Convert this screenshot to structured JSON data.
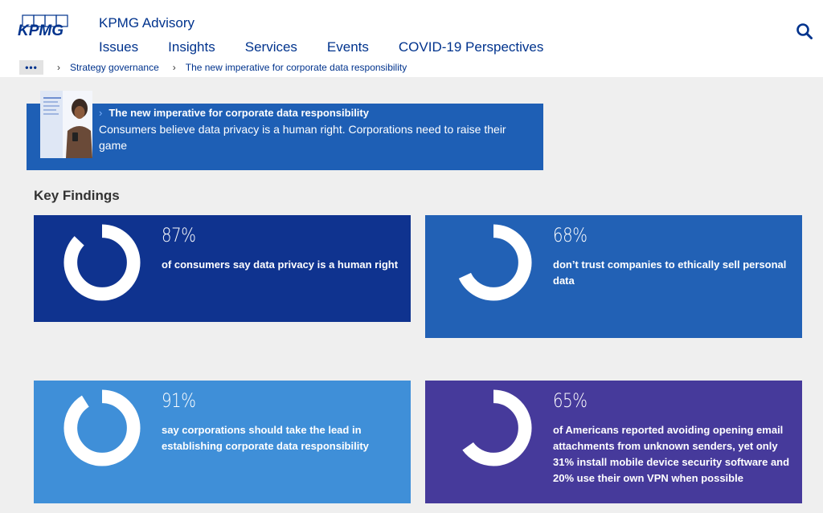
{
  "header": {
    "logo_text": "KPMG",
    "site_title": "KPMG Advisory",
    "nav": [
      "Issues",
      "Insights",
      "Services",
      "Events",
      "COVID-19 Perspectives"
    ],
    "search_icon": "search-icon"
  },
  "breadcrumb": {
    "more": "•••",
    "items": [
      "Strategy governance",
      "The new imperative for corporate data responsibility"
    ]
  },
  "banner": {
    "heading": "The new imperative for corporate data responsibility",
    "description": "Consumers believe data privacy is a human right. Corporations need to raise their game"
  },
  "key_findings": {
    "title": "Key Findings",
    "cards": [
      {
        "percent": "87%",
        "value": 87,
        "text": "of consumers say data privacy is a human right",
        "color": "#0f338f"
      },
      {
        "percent": "68%",
        "value": 68,
        "text": "don’t trust companies to ethically sell personal data",
        "color": "#2261b5"
      },
      {
        "percent": "91%",
        "value": 91,
        "text": "say corporations should take the lead in establishing corporate data responsibility",
        "color": "#3f8fd8"
      },
      {
        "percent": "65%",
        "value": 65,
        "text": "of Americans reported avoiding opening email attachments from unknown senders, yet only 31% install mobile device security software and 20% use their own VPN when possible",
        "color": "#463a9b"
      }
    ]
  }
}
